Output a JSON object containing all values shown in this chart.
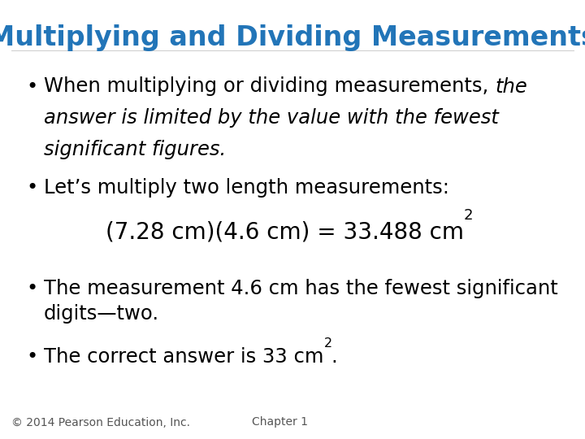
{
  "title": "Multiplying and Dividing Measurements",
  "title_color": "#2275B8",
  "title_fontsize": 24,
  "background_color": "#FFFFFF",
  "footer_left": "© 2014 Pearson Education, Inc.",
  "footer_right": "Chapter 1",
  "footer_fontsize": 10,
  "bullet_fontsize": 17.5,
  "eq_fontsize": 20,
  "text_color": "#000000",
  "footer_color": "#555555",
  "bullet_indent": 0.045,
  "text_indent": 0.075,
  "eq_indent": 0.18
}
